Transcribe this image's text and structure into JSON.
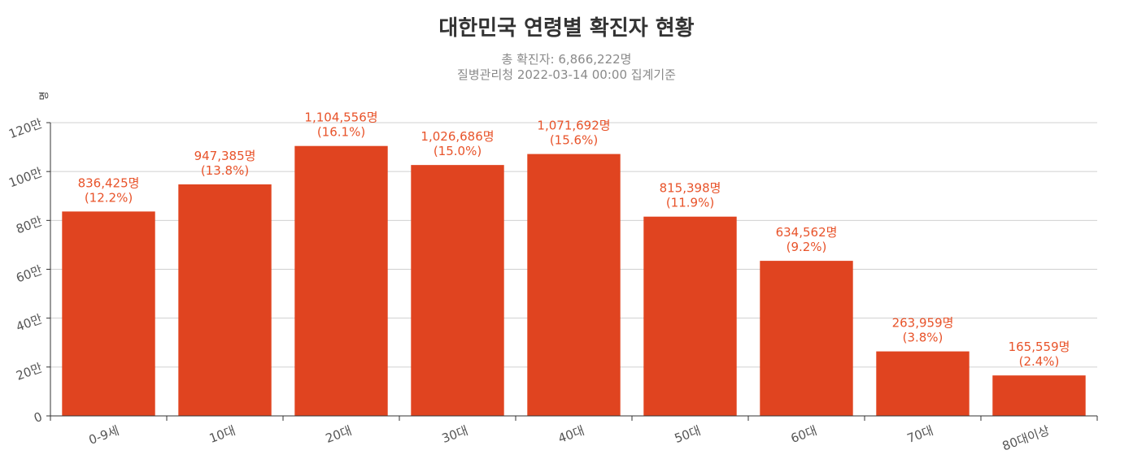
{
  "chart_data": {
    "type": "bar",
    "title": "대한민국 연령별 확진자 현황",
    "subtitle": "총 확진자: 6,866,222명",
    "subtitle2": "질병관리청 2022-03-14 00:00 집계기준",
    "ylabel": "명",
    "xlabel": "",
    "ylim": [
      0,
      1200000
    ],
    "yticks": [
      0,
      200000,
      400000,
      600000,
      800000,
      1000000,
      1200000
    ],
    "ytick_labels": [
      "0",
      "20만",
      "40만",
      "60만",
      "80만",
      "100만",
      "120만"
    ],
    "categories": [
      "0-9세",
      "10대",
      "20대",
      "30대",
      "40대",
      "50대",
      "60대",
      "70대",
      "80대이상"
    ],
    "values": [
      836425,
      947385,
      1104556,
      1026686,
      1071692,
      815398,
      634562,
      263959,
      165559
    ],
    "value_labels": [
      "836,425명",
      "947,385명",
      "1,104,556명",
      "1,026,686명",
      "1,071,692명",
      "815,398명",
      "634,562명",
      "263,959명",
      "165,559명"
    ],
    "percent_labels": [
      "(12.2%)",
      "(13.8%)",
      "(16.1%)",
      "(15.0%)",
      "(15.6%)",
      "(11.9%)",
      "(9.2%)",
      "(3.8%)",
      "(2.4%)"
    ],
    "grid": true,
    "legend": "none",
    "colors": {
      "bar": "#e04420",
      "label": "#e8532a",
      "grid": "#d0d0d0",
      "axis": "#333333",
      "tick_text": "#555555"
    }
  }
}
